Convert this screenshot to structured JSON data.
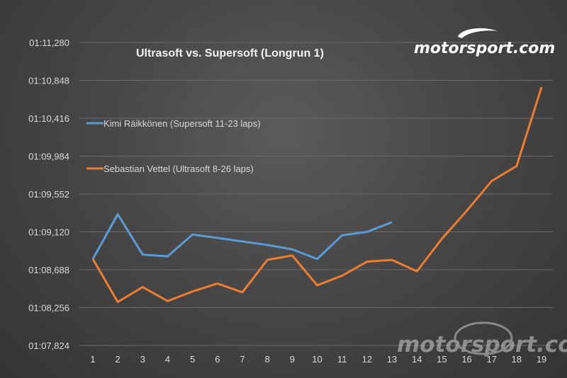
{
  "brand": {
    "logo_text": "motorsport.com",
    "watermark_text": "motorsport.com"
  },
  "chart_data": {
    "type": "line",
    "title": "Ultrasoft vs. Supersoft (Longrun 1)",
    "xlabel": "",
    "ylabel": "",
    "x": [
      1,
      2,
      3,
      4,
      5,
      6,
      7,
      8,
      9,
      10,
      11,
      12,
      13,
      14,
      15,
      16,
      17,
      18,
      19
    ],
    "y_tick_values": [
      67.824,
      68.256,
      68.688,
      69.12,
      69.552,
      69.984,
      70.416,
      70.848,
      71.28
    ],
    "y_tick_labels": [
      "01:07,824",
      "01:08,256",
      "01:08,688",
      "01:09,120",
      "01:09,552",
      "01:09,984",
      "01:10,416",
      "01:10,848",
      "01:11,280"
    ],
    "ylim": [
      67.824,
      71.28
    ],
    "grid": true,
    "legend_position": "left",
    "series": [
      {
        "name": "Kimi Räikkönen (Supersoft 11-23 laps)",
        "color": "#5b9bd5",
        "x": [
          1,
          2,
          3,
          4,
          5,
          6,
          7,
          8,
          9,
          10,
          11,
          12,
          13
        ],
        "values": [
          68.81,
          69.32,
          68.86,
          68.84,
          69.09,
          69.05,
          69.01,
          68.97,
          68.92,
          68.81,
          69.08,
          69.12,
          69.23
        ]
      },
      {
        "name": "Sebastian Vettel (Ultrasoft 8-26 laps)",
        "color": "#ed7d31",
        "x": [
          1,
          2,
          3,
          4,
          5,
          6,
          7,
          8,
          9,
          10,
          11,
          12,
          13,
          14,
          15,
          16,
          17,
          18,
          19
        ],
        "values": [
          68.81,
          68.32,
          68.49,
          68.33,
          68.44,
          68.53,
          68.43,
          68.8,
          68.85,
          68.51,
          68.62,
          68.78,
          68.8,
          68.67,
          69.04,
          69.36,
          69.7,
          69.87,
          70.77
        ]
      }
    ]
  }
}
